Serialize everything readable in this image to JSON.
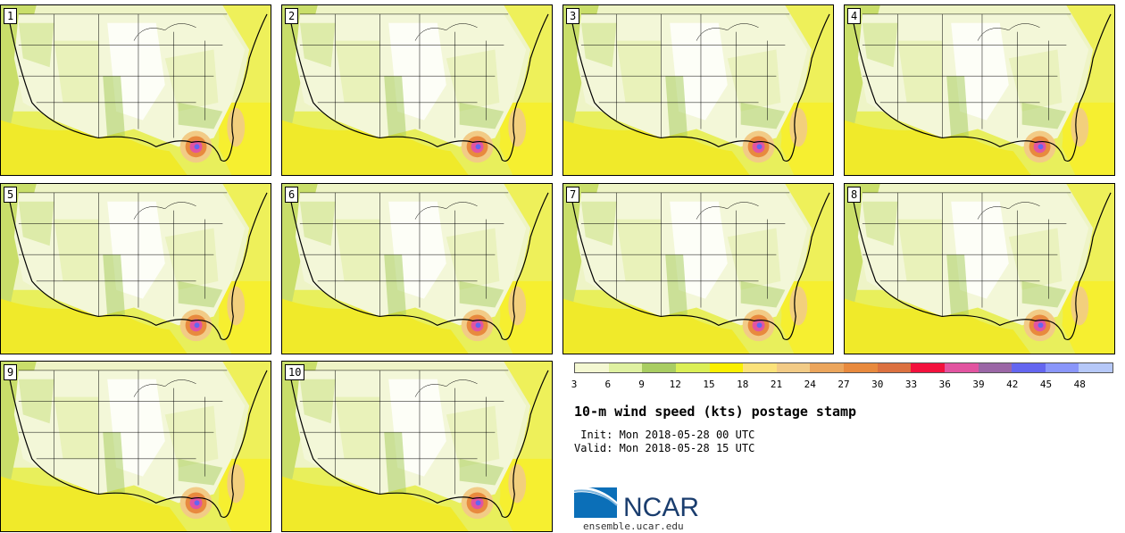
{
  "panels": [
    "1",
    "2",
    "3",
    "4",
    "5",
    "6",
    "7",
    "8",
    "9",
    "10"
  ],
  "colorbar": {
    "colors": [
      "#f4f8d2",
      "#dff1a1",
      "#a9cd62",
      "#dbef56",
      "#fbf000",
      "#fbe27a",
      "#f2cb86",
      "#eba55c",
      "#e88a3e",
      "#dc7140",
      "#f3113d",
      "#e254a0",
      "#9b67a6",
      "#6466f0",
      "#8a96fa",
      "#b6c8f8"
    ],
    "ticks": [
      "3",
      "6",
      "9",
      "12",
      "15",
      "18",
      "21",
      "24",
      "27",
      "30",
      "33",
      "36",
      "39",
      "42",
      "45",
      "48"
    ]
  },
  "title": "10-m wind speed (kts) postage stamp",
  "init": " Init: Mon 2018-05-28 00 UTC",
  "valid": "Valid: Mon 2018-05-28 15 UTC",
  "logo": {
    "text": "NCAR"
  },
  "website": "ensemble.ucar.edu"
}
